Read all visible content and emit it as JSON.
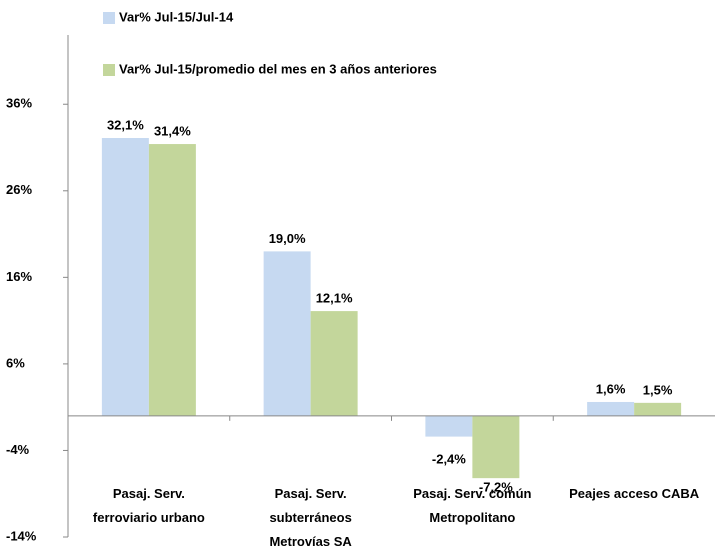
{
  "chart_data": {
    "type": "bar",
    "categories": [
      "Pasaj.  Serv.\nferroviario urbano",
      "Pasaj.  Serv.\nsubterráneos\nMetrovías SA",
      "Pasaj.  Serv. común\nMetropolitano",
      "Peajes acceso  CABA"
    ],
    "series": [
      {
        "name": "Var% Jul-15/Jul-14",
        "color": "#c6d9f1",
        "values": [
          32.1,
          19.0,
          -2.4,
          1.6
        ],
        "value_labels": [
          "32,1%",
          "19,0%",
          "-2,4%",
          "1,6%"
        ]
      },
      {
        "name": "Var% Jul-15/promedio del mes en 3 años anteriores",
        "color": "#c3d69b",
        "values": [
          31.4,
          12.1,
          -7.2,
          1.5
        ],
        "value_labels": [
          "31,4%",
          "12,1%",
          "-7,2%",
          "1,5%"
        ]
      }
    ],
    "ylim": [
      -14,
      44
    ],
    "yticks": [
      {
        "value": 36,
        "label": "36%"
      },
      {
        "value": 26,
        "label": "26%"
      },
      {
        "value": 16,
        "label": "16%"
      },
      {
        "value": 6,
        "label": "6%"
      },
      {
        "value": -4,
        "label": "-4%"
      },
      {
        "value": -14,
        "label": "-14%"
      }
    ]
  }
}
